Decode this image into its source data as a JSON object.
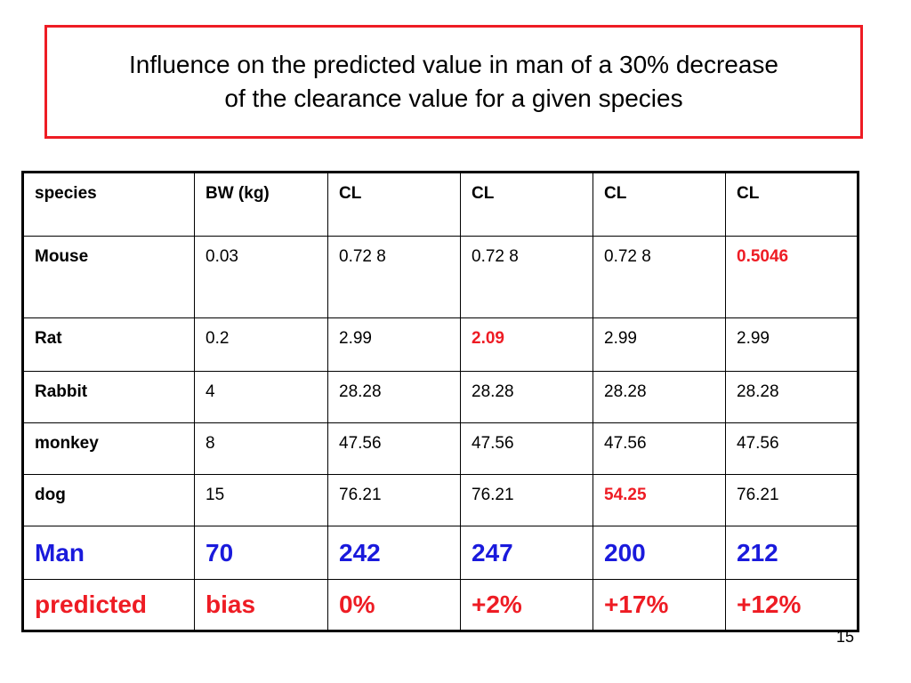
{
  "title": "Influence on the predicted value in man of  a 30% decrease\nof the clearance value  for a given species",
  "table": {
    "headers": [
      "species",
      "BW (kg)",
      "CL",
      "CL",
      "CL",
      "CL"
    ],
    "rows": [
      [
        "Mouse",
        "0.03",
        "0.72 8",
        "0.72 8",
        "0.72 8",
        "0.5046"
      ],
      [
        "Rat",
        "0.2",
        "2.99",
        "2.09",
        "2.99",
        "2.99"
      ],
      [
        "Rabbit",
        "4",
        "28.28",
        "28.28",
        "28.28",
        "28.28"
      ],
      [
        "monkey",
        "8",
        "47.56",
        "47.56",
        "47.56",
        "47.56"
      ],
      [
        "dog",
        "15",
        "76.21",
        "76.21",
        "54.25",
        "76.21"
      ]
    ],
    "man_row": [
      "Man",
      "70",
      "242",
      "247",
      "200",
      "212"
    ],
    "predicted_row": [
      "predicted",
      "bias",
      "0%",
      "+2%",
      "+17%",
      "+12%"
    ]
  },
  "highlighted_cells": [
    "Mouse/CL4: 0.5046",
    "Rat/CL2: 2.09",
    "dog/CL3: 54.25"
  ],
  "page_number": "15",
  "colors": {
    "border_red": "#ee1c24",
    "highlight_red": "#ee1c24",
    "man_blue": "#1a1adc"
  }
}
